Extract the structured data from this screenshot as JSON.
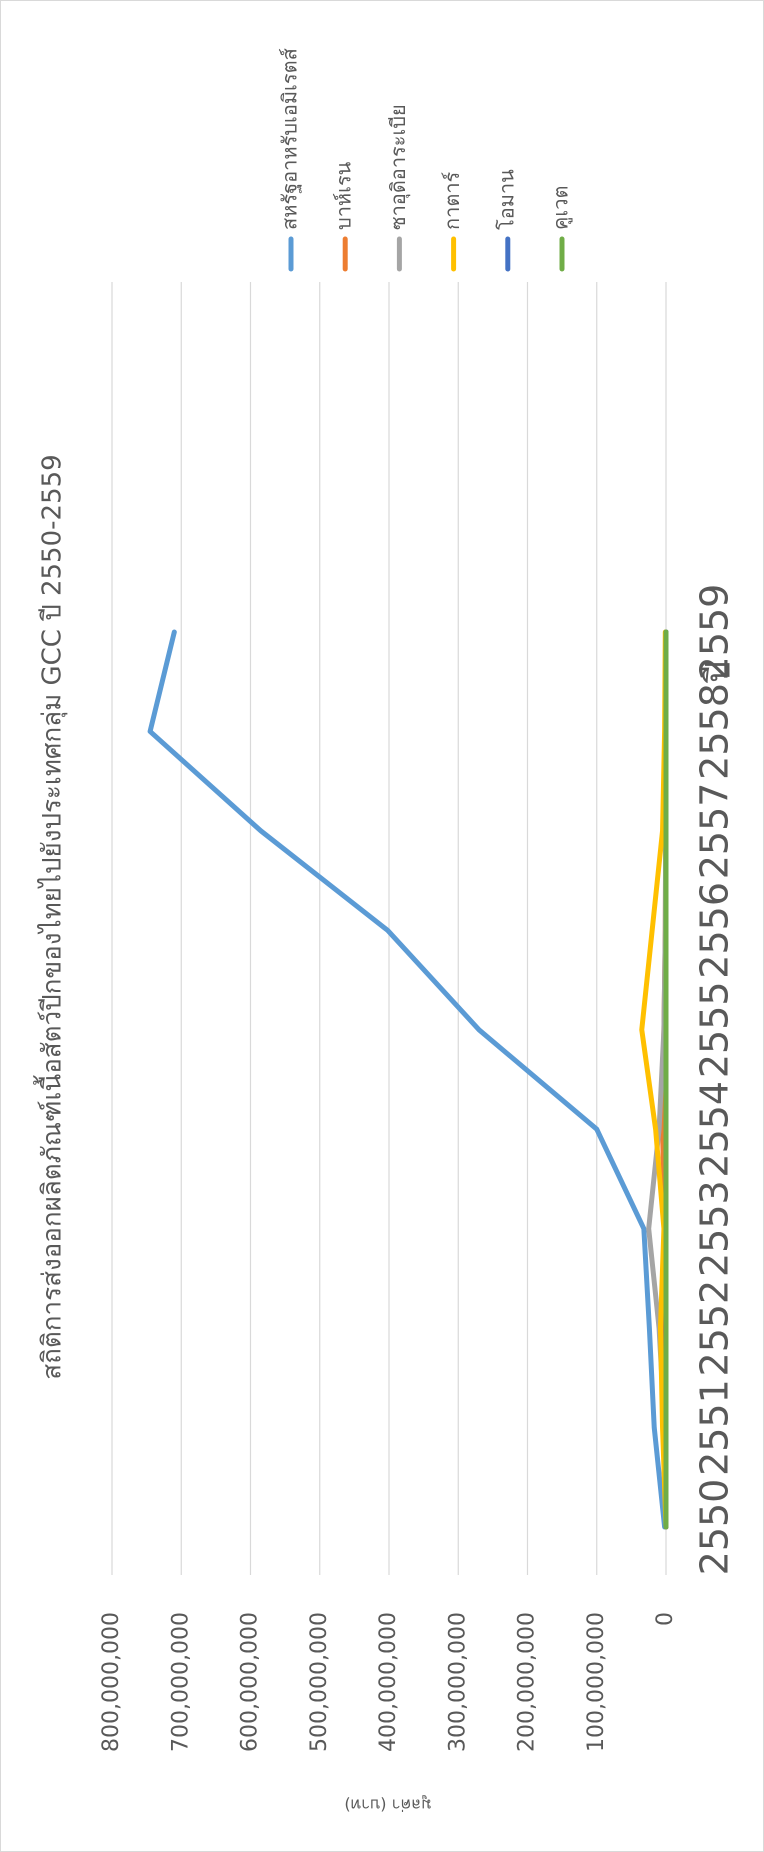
{
  "chart_data": {
    "type": "line",
    "title": "สถิติการส่งออกผลิตภัณฑ์เนื้อสัตว์ปีกของไทยไปยังประเทศกลุ่ม GCC ปี 2550-2559",
    "x_label": "ปี",
    "y_label": "มูลค่า (บาท)",
    "categories": [
      "2550",
      "2551",
      "2552",
      "2553",
      "2554",
      "2555",
      "2556",
      "2557",
      "2558",
      "2559"
    ],
    "series": [
      {
        "name": "สหรัฐอาหรับเอมิเรตส์",
        "color": "#5b9bd5",
        "values": [
          2000000,
          17000000,
          24000000,
          32000000,
          100000000,
          270000000,
          402000000,
          585000000,
          745000000,
          710000000
        ]
      },
      {
        "name": "บาห์เรน",
        "color": "#ed7d31",
        "values": [
          0,
          0,
          1000000,
          2000000,
          5000000,
          3000000,
          1000000,
          500000,
          0,
          0
        ]
      },
      {
        "name": "ซาอุดิอาระเบีย",
        "color": "#a5a5a5",
        "values": [
          0,
          2000000,
          10000000,
          25000000,
          10000000,
          3000000,
          1000000,
          500000,
          0,
          0
        ]
      },
      {
        "name": "กาตาร์",
        "color": "#ffc000",
        "values": [
          0,
          5000000,
          8000000,
          3000000,
          15000000,
          35000000,
          20000000,
          5000000,
          2000000,
          1000000
        ]
      },
      {
        "name": "โอมาน",
        "color": "#4472c4",
        "values": [
          0,
          0,
          0,
          0,
          0,
          0,
          0,
          0,
          0,
          0
        ]
      },
      {
        "name": "คูเวต",
        "color": "#70ad47",
        "values": [
          0,
          0,
          0,
          0,
          0,
          0,
          0,
          0,
          0,
          0
        ]
      }
    ],
    "ylim": [
      0,
      800000000
    ],
    "yticks": [
      0,
      {
        "value": 100000000,
        "label": "100,000,000"
      },
      {
        "value": 200000000,
        "label": "200,000,000"
      },
      {
        "value": 300000000,
        "label": "300,000,000"
      },
      {
        "value": 400000000,
        "label": "400,000,000"
      },
      {
        "value": 500000000,
        "label": "500,000,000"
      },
      {
        "value": 600000000,
        "label": "600,000,000"
      },
      {
        "value": 700000000,
        "label": "700,000,000"
      },
      {
        "value": 800000000,
        "label": "800,000,000"
      }
    ],
    "grid": true,
    "legend": "right"
  }
}
